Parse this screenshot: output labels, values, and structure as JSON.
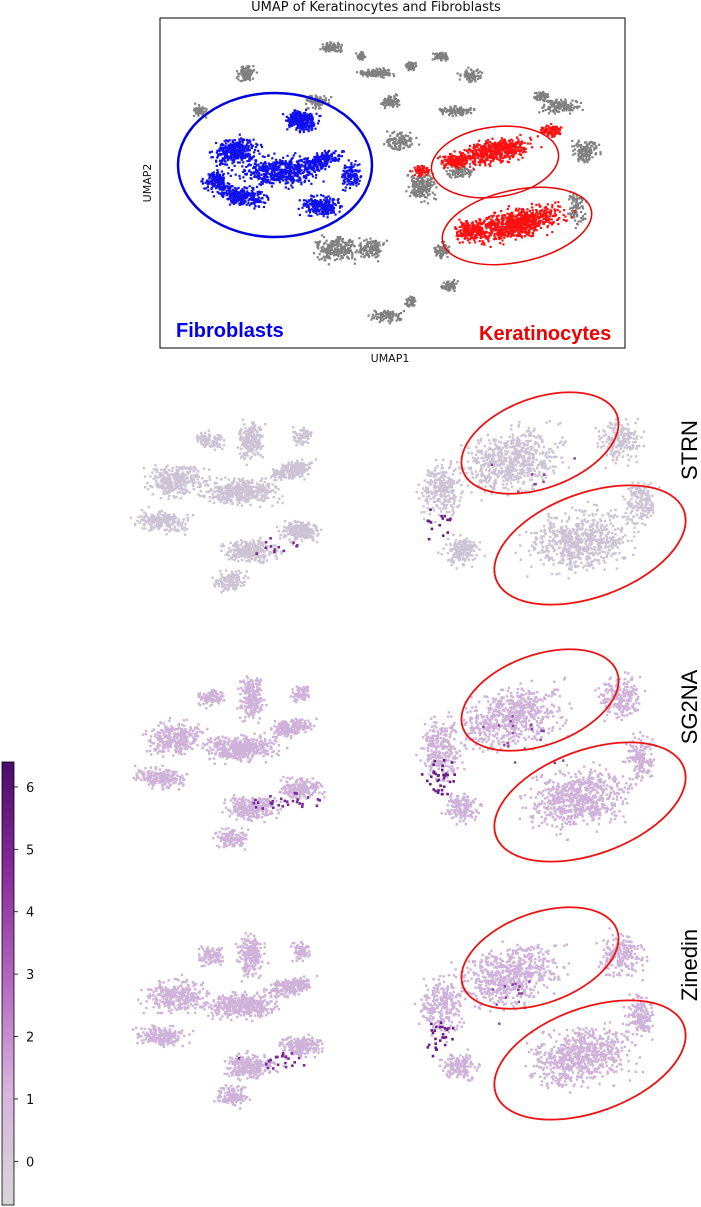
{
  "chart_data": [
    {
      "type": "scatter",
      "title": "UMAP of Keratinocytes and Fibroblasts",
      "xlabel": "UMAP1",
      "ylabel": "UMAP2",
      "grid": false,
      "series": [
        {
          "name": "Fibroblasts",
          "color": "#0000ee"
        },
        {
          "name": "Keratinocytes",
          "color": "#ff0000"
        }
      ],
      "annotations": [
        "Fibroblasts",
        "Keratinocytes"
      ]
    },
    {
      "type": "scatter",
      "panels": [
        {
          "gene": "STRN"
        },
        {
          "gene": "SG2NA"
        },
        {
          "gene": "Zinedin"
        }
      ],
      "colorbar": {
        "ticks": [
          0,
          1,
          2,
          3,
          4,
          5,
          6
        ],
        "range": [
          -0.7,
          6.4
        ],
        "colors": [
          "#d6d6d6",
          "#d9b4df",
          "#b46ac1",
          "#8a2b9b",
          "#4a0c6b"
        ]
      }
    }
  ]
}
